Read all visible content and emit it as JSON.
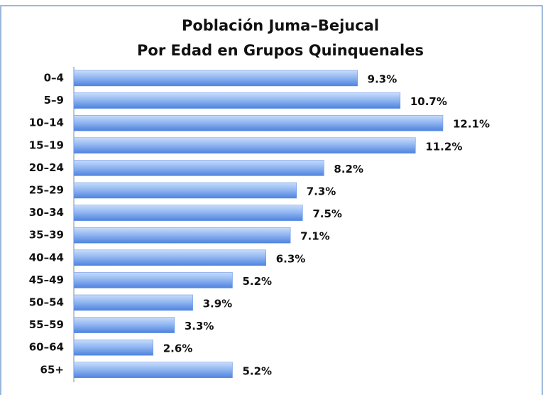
{
  "chart_data": {
    "type": "bar",
    "orientation": "horizontal",
    "title": [
      "Población Juma–Bejucal",
      "Por Edad en Grupos Quinquenales"
    ],
    "categories": [
      "0–4",
      "5–9",
      "10–14",
      "15–19",
      "20–24",
      "25–29",
      "30–34",
      "35–39",
      "40–44",
      "45–49",
      "50–54",
      "55–59",
      "60–64",
      "65+"
    ],
    "values": [
      9.3,
      10.7,
      12.1,
      11.2,
      8.2,
      7.3,
      7.5,
      7.1,
      6.3,
      5.2,
      3.9,
      3.3,
      2.6,
      5.2
    ],
    "value_labels": [
      "9.3%",
      "10.7%",
      "12.1%",
      "11.2%",
      "8.2%",
      "7.3%",
      "7.5%",
      "7.1%",
      "6.3%",
      "5.2%",
      "3.9%",
      "3.3%",
      "2.6%",
      "5.2%"
    ],
    "color": "#5b8fe6"
  }
}
